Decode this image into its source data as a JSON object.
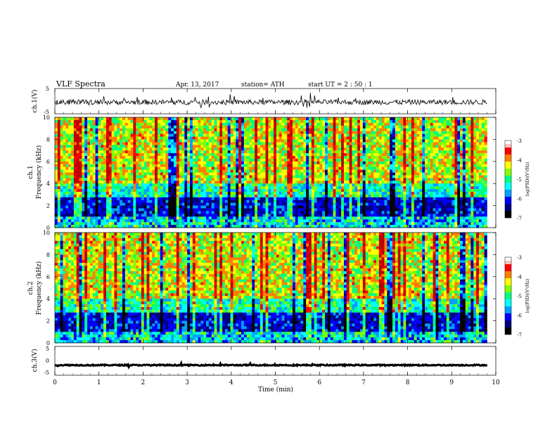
{
  "header": {
    "title": "VLF  Spectra",
    "date": "Apr. 13, 2017",
    "station": "station= ATH",
    "start": "start  UT  =   2  : 50 : 1"
  },
  "colors": {
    "background": "#ffffff",
    "axis": "#000000",
    "trace": "#000000",
    "colorscale": [
      "#000000",
      "#000080",
      "#0000ff",
      "#00a0ff",
      "#00ffff",
      "#00ff80",
      "#80ff00",
      "#ffff00",
      "#ff8000",
      "#ff0000",
      "#c00000",
      "#ffffff"
    ]
  },
  "chart_data": [
    {
      "id": "ch1-voltage",
      "type": "line",
      "ylabel": "ch.1(V)",
      "ylim": [
        -5,
        5
      ],
      "yticks": [
        "5",
        "-5"
      ],
      "xlim": [
        0,
        10
      ],
      "mean": -0.4,
      "spread": 1.0,
      "extent_min": 9.8,
      "series": []
    },
    {
      "id": "ch1-spectrogram",
      "type": "heatmap",
      "ylabel": "Frequency (kHz)",
      "channel_label": "ch.1",
      "ylim": [
        0,
        10
      ],
      "yticks": [
        "0",
        "2",
        "4",
        "6",
        "8",
        "10"
      ],
      "xlim": [
        0,
        10
      ],
      "extent_min": 9.8,
      "colorbar": {
        "label": "log(PSD)(V²/Hz)",
        "ticks": [
          "-3",
          "-4",
          "-5",
          "-6",
          "-7"
        ],
        "range": [
          -7,
          -3
        ]
      }
    },
    {
      "id": "ch2-spectrogram",
      "type": "heatmap",
      "ylabel": "Frequency (kHz)",
      "channel_label": "ch.2",
      "ylim": [
        0,
        10
      ],
      "yticks": [
        "0",
        "2",
        "4",
        "6",
        "8",
        "10"
      ],
      "xlim": [
        0,
        10
      ],
      "extent_min": 9.8,
      "colorbar": {
        "label": "log(PSD)(V²/Hz)",
        "ticks": [
          "-3",
          "-4",
          "-5",
          "-6",
          "-7"
        ],
        "range": [
          -7,
          -3
        ]
      }
    },
    {
      "id": "ch3-voltage",
      "type": "line",
      "ylabel": "ch.3(V)",
      "ylim": [
        -5,
        5
      ],
      "yticks": [
        "5",
        "0",
        "-5"
      ],
      "xlim": [
        0,
        10
      ],
      "mean": -1.5,
      "spread": 0.2,
      "extent_min": 9.8,
      "series": []
    }
  ],
  "xaxis": {
    "label": "Time  (min)",
    "ticks": [
      "0",
      "1",
      "2",
      "3",
      "4",
      "5",
      "6",
      "7",
      "8",
      "9",
      "10"
    ]
  }
}
